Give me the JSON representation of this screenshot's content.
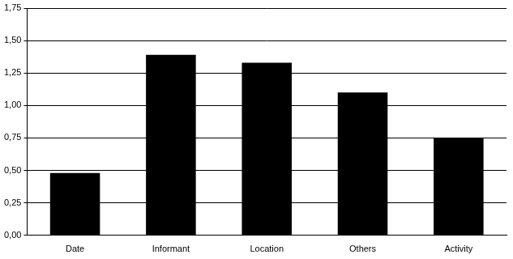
{
  "chart_data": {
    "type": "bar",
    "categories": [
      "Date",
      "Informant",
      "Location",
      "Others",
      "Activity"
    ],
    "values": [
      0.48,
      1.39,
      1.33,
      1.1,
      0.75
    ],
    "color": "#000000",
    "ylim": [
      0,
      1.75
    ],
    "yticks": [
      {
        "value": 0,
        "label": "0,00"
      },
      {
        "value": 0.25,
        "label": "0,25"
      },
      {
        "value": 0.5,
        "label": "0,50"
      },
      {
        "value": 0.75,
        "label": "0,75"
      },
      {
        "value": 1,
        "label": "1,00"
      },
      {
        "value": 1.25,
        "label": "1,25"
      },
      {
        "value": 1.5,
        "label": "1,50"
      },
      {
        "value": 1.75,
        "label": "1,75"
      }
    ],
    "grid": true
  }
}
